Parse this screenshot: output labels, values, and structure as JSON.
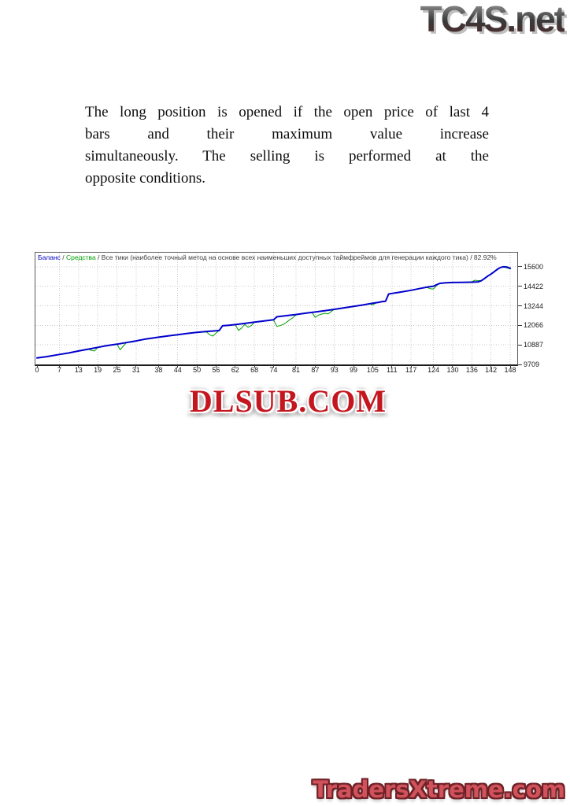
{
  "logos": {
    "tc4s": "TC4S.net",
    "dlsub": "DLSUB.COM",
    "tradersxtreme": "TradersXtreme.com"
  },
  "paragraph": {
    "lines": [
      "The long position is opened if the open price of last 4",
      "bars and their maximum value increase",
      "simultaneously. The selling is performed at the",
      "opposite conditions."
    ]
  },
  "chart_data": {
    "type": "line",
    "legend": {
      "balance_label": "Баланс",
      "sep1": " / ",
      "equity_label": "Средства",
      "tail": " / Все тики (наиболее точный метод на основе всех наименьших доступных таймфреймов для генерации каждого тика) / 82.92%"
    },
    "quality_percent": "82.92%",
    "xlim": [
      -0.5,
      150.2
    ],
    "ylim": [
      9709,
      16450
    ],
    "x_ticks": [
      0,
      7,
      13,
      19,
      25,
      31,
      38,
      44,
      50,
      56,
      62,
      68,
      74,
      81,
      87,
      93,
      99,
      105,
      111,
      117,
      124,
      130,
      136,
      142,
      148
    ],
    "y_ticks": [
      15600,
      14422,
      13244,
      12066,
      10887,
      9709
    ],
    "grid": true,
    "colors": {
      "balance": "#0000cc",
      "equity": "#00a000",
      "grid": "#c8c8c8"
    },
    "series": [
      {
        "name": "Средства",
        "color": "#00a000",
        "width": 1,
        "points": [
          [
            0,
            10100
          ],
          [
            3,
            10180
          ],
          [
            7,
            10310
          ],
          [
            10,
            10400
          ],
          [
            13,
            10520
          ],
          [
            16,
            10630
          ],
          [
            17,
            10560
          ],
          [
            18,
            10520
          ],
          [
            19,
            10740
          ],
          [
            22,
            10850
          ],
          [
            25,
            10930
          ],
          [
            26,
            10590
          ],
          [
            27,
            10820
          ],
          [
            28,
            11030
          ],
          [
            30,
            11060
          ],
          [
            31,
            11130
          ],
          [
            34,
            11240
          ],
          [
            38,
            11350
          ],
          [
            41,
            11430
          ],
          [
            44,
            11500
          ],
          [
            47,
            11580
          ],
          [
            50,
            11640
          ],
          [
            53,
            11670
          ],
          [
            54,
            11500
          ],
          [
            55,
            11420
          ],
          [
            56,
            11600
          ],
          [
            57,
            11760
          ],
          [
            58,
            12040
          ],
          [
            60,
            12070
          ],
          [
            62,
            12110
          ],
          [
            63,
            11760
          ],
          [
            64,
            11900
          ],
          [
            65,
            12120
          ],
          [
            66,
            11950
          ],
          [
            67,
            12050
          ],
          [
            68,
            12260
          ],
          [
            71,
            12330
          ],
          [
            74,
            12400
          ],
          [
            75,
            12000
          ],
          [
            76,
            12050
          ],
          [
            77,
            12120
          ],
          [
            78,
            12250
          ],
          [
            79,
            12400
          ],
          [
            80,
            12520
          ],
          [
            81,
            12700
          ],
          [
            84,
            12790
          ],
          [
            86,
            12840
          ],
          [
            87,
            12550
          ],
          [
            88,
            12680
          ],
          [
            90,
            12800
          ],
          [
            91,
            12750
          ],
          [
            92,
            12900
          ],
          [
            93,
            13030
          ],
          [
            96,
            13120
          ],
          [
            99,
            13210
          ],
          [
            102,
            13300
          ],
          [
            104,
            13360
          ],
          [
            105,
            13300
          ],
          [
            106,
            13410
          ],
          [
            108,
            13500
          ],
          [
            109,
            13520
          ],
          [
            110,
            13960
          ],
          [
            111,
            13990
          ],
          [
            114,
            14080
          ],
          [
            117,
            14180
          ],
          [
            120,
            14300
          ],
          [
            122,
            14350
          ],
          [
            123,
            14270
          ],
          [
            124,
            14260
          ],
          [
            125,
            14480
          ],
          [
            126,
            14600
          ],
          [
            128,
            14630
          ],
          [
            130,
            14650
          ],
          [
            133,
            14660
          ],
          [
            136,
            14700
          ],
          [
            137,
            14790
          ],
          [
            138,
            14760
          ],
          [
            139,
            14780
          ],
          [
            140,
            14900
          ],
          [
            141,
            15040
          ],
          [
            142,
            15160
          ],
          [
            143,
            15300
          ],
          [
            144,
            15450
          ],
          [
            145,
            15560
          ],
          [
            146,
            15570
          ],
          [
            147,
            15530
          ],
          [
            148,
            15470
          ]
        ]
      },
      {
        "name": "Баланс",
        "color": "#0000cc",
        "width": 2,
        "points": [
          [
            0,
            10100
          ],
          [
            3,
            10180
          ],
          [
            7,
            10310
          ],
          [
            10,
            10400
          ],
          [
            13,
            10520
          ],
          [
            16,
            10630
          ],
          [
            19,
            10740
          ],
          [
            22,
            10850
          ],
          [
            25,
            10930
          ],
          [
            28,
            11030
          ],
          [
            31,
            11130
          ],
          [
            34,
            11240
          ],
          [
            38,
            11350
          ],
          [
            41,
            11430
          ],
          [
            44,
            11500
          ],
          [
            47,
            11580
          ],
          [
            50,
            11640
          ],
          [
            53,
            11700
          ],
          [
            56,
            11740
          ],
          [
            57,
            11760
          ],
          [
            58,
            12040
          ],
          [
            60,
            12070
          ],
          [
            62,
            12110
          ],
          [
            65,
            12180
          ],
          [
            68,
            12260
          ],
          [
            71,
            12330
          ],
          [
            74,
            12400
          ],
          [
            75,
            12580
          ],
          [
            78,
            12650
          ],
          [
            81,
            12720
          ],
          [
            84,
            12800
          ],
          [
            87,
            12870
          ],
          [
            90,
            12950
          ],
          [
            93,
            13030
          ],
          [
            96,
            13120
          ],
          [
            99,
            13210
          ],
          [
            102,
            13300
          ],
          [
            105,
            13400
          ],
          [
            107,
            13460
          ],
          [
            108,
            13500
          ],
          [
            109,
            13520
          ],
          [
            110,
            13960
          ],
          [
            111,
            13990
          ],
          [
            114,
            14080
          ],
          [
            117,
            14180
          ],
          [
            120,
            14300
          ],
          [
            122,
            14370
          ],
          [
            124,
            14430
          ],
          [
            125,
            14520
          ],
          [
            126,
            14600
          ],
          [
            128,
            14630
          ],
          [
            130,
            14650
          ],
          [
            133,
            14660
          ],
          [
            136,
            14670
          ],
          [
            138,
            14690
          ],
          [
            139,
            14760
          ],
          [
            140,
            14900
          ],
          [
            141,
            15040
          ],
          [
            142,
            15160
          ],
          [
            143,
            15300
          ],
          [
            144,
            15450
          ],
          [
            145,
            15560
          ],
          [
            146,
            15600
          ],
          [
            147,
            15580
          ],
          [
            148,
            15510
          ]
        ]
      }
    ]
  }
}
